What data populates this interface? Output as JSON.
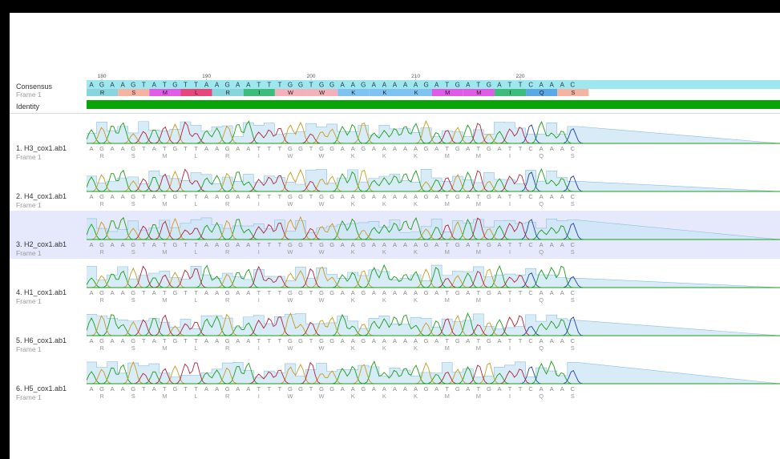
{
  "consensus": {
    "label": "Consensus",
    "frame_label": "Frame 1",
    "identity_label": "Identity",
    "sequence": "AGAAGTATGTTAAGAATTTGGTGGAAGAAAAAGATGATGATTCAAAC",
    "aminoacids": [
      "R",
      "S",
      "M",
      "L",
      "R",
      "I",
      "W",
      "W",
      "K",
      "K",
      "K",
      "M",
      "M",
      "I",
      "Q",
      "S"
    ],
    "ruler": [
      {
        "label": "180",
        "index": 1
      },
      {
        "label": "190",
        "index": 11
      },
      {
        "label": "200",
        "index": 21
      },
      {
        "label": "210",
        "index": 31
      },
      {
        "label": "220",
        "index": 41
      }
    ],
    "aa_colors": {
      "R": "#88d6dc",
      "S": "#f7b3a2",
      "M": "#e25ae8",
      "L": "#e8467a",
      "I": "#3dbd7a",
      "W": "#f4b0bb",
      "K": "#7fc3f2",
      "Q": "#58a9e6"
    },
    "identity_color": "#0aa30a",
    "header_bg": "#9ee7ee"
  },
  "trace_colors": {
    "A": "#1a9e1a",
    "C": "#1f3fa6",
    "G": "#c79b1f",
    "T": "#b0233a",
    "quality": "#c7e4f3"
  },
  "rows": [
    {
      "name": "1. H3_cox1.ab1",
      "frame": "Frame 1",
      "selected": false,
      "seed": 3
    },
    {
      "name": "2. H4_cox1.ab1",
      "frame": "Frame 1",
      "selected": false,
      "seed": 7
    },
    {
      "name": "3. H2_cox1.ab1",
      "frame": "Frame 1",
      "selected": true,
      "seed": 11
    },
    {
      "name": "4. H1_cox1.ab1",
      "frame": "Frame 1",
      "selected": false,
      "seed": 17
    },
    {
      "name": "5. H6_cox1.ab1",
      "frame": "Frame 1",
      "selected": false,
      "seed": 23
    },
    {
      "name": "6. H5_cox1.ab1",
      "frame": "Frame 1",
      "selected": false,
      "seed": 29
    }
  ]
}
